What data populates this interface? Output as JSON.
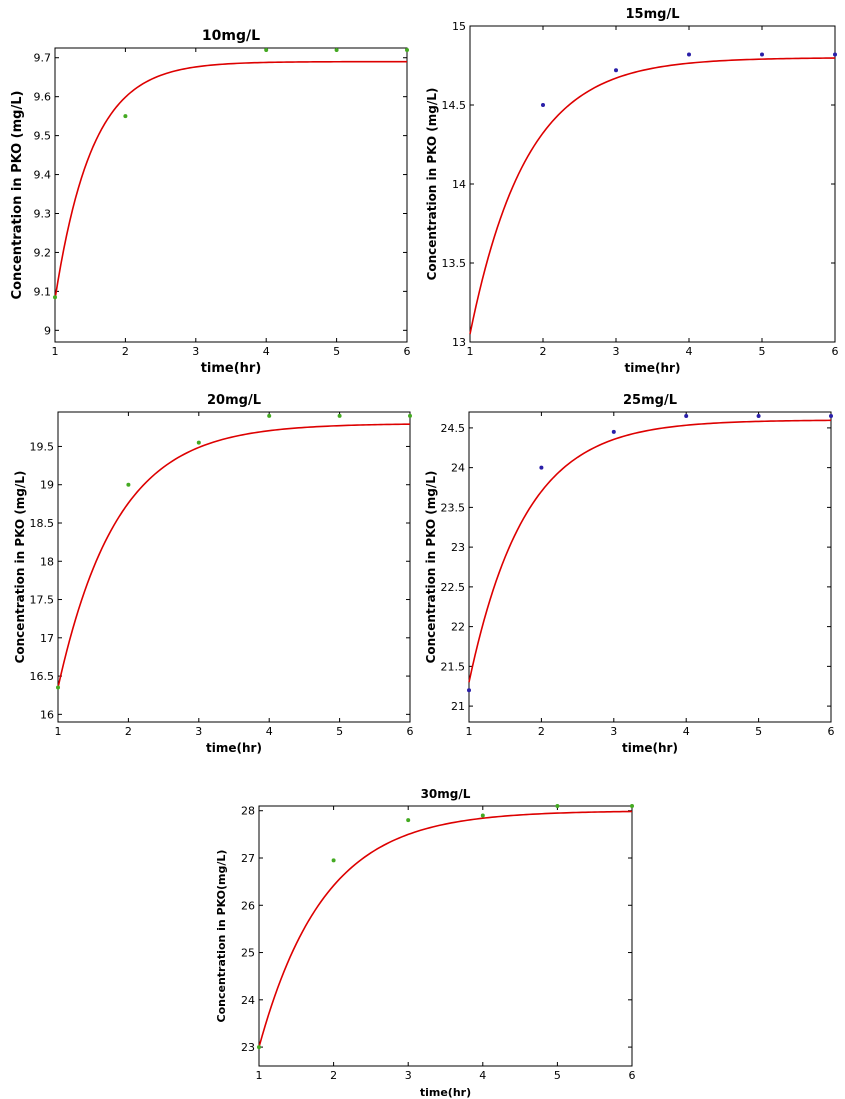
{
  "chart_data": [
    {
      "type": "scatter",
      "title": "10mg/L",
      "xlabel": "time(hr)",
      "ylabel": "Concentration in PKO (mg/L)",
      "xlim": [
        1,
        6
      ],
      "ylim": [
        8.97,
        9.725
      ],
      "xticks": [
        1,
        2,
        3,
        4,
        5,
        6
      ],
      "yticks": [
        9,
        9.1,
        9.2,
        9.3,
        9.4,
        9.5,
        9.6,
        9.7
      ],
      "ytick_labels": [
        "9",
        "9.1",
        "9.2",
        "9.3",
        "9.4",
        "9.5",
        "9.6",
        "9.7"
      ],
      "grid": false,
      "marker_color": "#44aa22",
      "fit_color": "#dd0000",
      "points": {
        "x": [
          1,
          2,
          4,
          5,
          6
        ],
        "y": [
          9.085,
          9.55,
          9.72,
          9.72,
          9.72
        ]
      },
      "fit": {
        "model": "y = ymax - (ymax - y0) * exp(-k (x - 1))",
        "y0": 9.08,
        "ymax": 9.69,
        "k": 1.9
      }
    },
    {
      "type": "scatter",
      "title": "15mg/L",
      "xlabel": "time(hr)",
      "ylabel": "Concentration in PKO (mg/L)",
      "xlim": [
        1,
        6
      ],
      "ylim": [
        13,
        15
      ],
      "xticks": [
        1,
        2,
        3,
        4,
        5,
        6
      ],
      "yticks": [
        13,
        13.5,
        14,
        14.5,
        15
      ],
      "ytick_labels": [
        "13",
        "13.5",
        "14",
        "14.5",
        "15"
      ],
      "grid": false,
      "marker_color": "#2a1fa8",
      "fit_color": "#dd0000",
      "points": {
        "x": [
          2,
          3,
          4,
          5,
          6
        ],
        "y": [
          14.5,
          14.72,
          14.82,
          14.82,
          14.82
        ]
      },
      "fit": {
        "model": "y = ymax - (ymax - y0) * exp(-k (x - 1))",
        "y0": 13.05,
        "ymax": 14.8,
        "k": 1.3
      }
    },
    {
      "type": "scatter",
      "title": "20mg/L",
      "xlabel": "time(hr)",
      "ylabel": "Concentration in PKO (mg/L)",
      "xlim": [
        1,
        6
      ],
      "ylim": [
        15.9,
        19.95
      ],
      "xticks": [
        1,
        2,
        3,
        4,
        5,
        6
      ],
      "yticks": [
        16,
        16.5,
        17,
        17.5,
        18,
        18.5,
        19,
        19.5
      ],
      "ytick_labels": [
        "16",
        "16.5",
        "17",
        "17.5",
        "18",
        "18.5",
        "19",
        "19.5"
      ],
      "grid": false,
      "marker_color": "#44aa22",
      "fit_color": "#dd0000",
      "points": {
        "x": [
          1,
          2,
          3,
          4,
          5,
          6
        ],
        "y": [
          16.35,
          19.0,
          19.55,
          19.9,
          19.9,
          19.9
        ]
      },
      "fit": {
        "model": "y = ymax - (ymax - y0) * exp(-k (x - 1))",
        "y0": 16.35,
        "ymax": 19.8,
        "k": 1.2
      }
    },
    {
      "type": "scatter",
      "title": "25mg/L",
      "xlabel": "time(hr)",
      "ylabel": "Concentration in PKO (mg/L)",
      "xlim": [
        1,
        6
      ],
      "ylim": [
        20.8,
        24.7
      ],
      "xticks": [
        1,
        2,
        3,
        4,
        5,
        6
      ],
      "yticks": [
        21,
        21.5,
        22,
        22.5,
        23,
        23.5,
        24,
        24.5
      ],
      "ytick_labels": [
        "21",
        "21.5",
        "22",
        "22.5",
        "23",
        "23.5",
        "24",
        "24.5"
      ],
      "grid": false,
      "marker_color": "#2a1fa8",
      "fit_color": "#dd0000",
      "points": {
        "x": [
          1,
          2,
          3,
          4,
          5,
          6
        ],
        "y": [
          21.2,
          24.0,
          24.45,
          24.65,
          24.65,
          24.65
        ]
      },
      "fit": {
        "model": "y = ymax - (ymax - y0) * exp(-k (x - 1))",
        "y0": 21.3,
        "ymax": 24.6,
        "k": 1.3
      }
    },
    {
      "type": "scatter",
      "title": "30mg/L",
      "xlabel": "time(hr)",
      "ylabel": "Concentration in PKO(mg/L)",
      "xlim": [
        1,
        6
      ],
      "ylim": [
        22.6,
        28.1
      ],
      "xticks": [
        1,
        2,
        3,
        4,
        5,
        6
      ],
      "yticks": [
        23,
        24,
        25,
        26,
        27,
        28
      ],
      "ytick_labels": [
        "23",
        "24",
        "25",
        "26",
        "27",
        "28"
      ],
      "grid": false,
      "marker_color": "#44aa22",
      "fit_color": "#dd0000",
      "points": {
        "x": [
          1,
          2,
          3,
          4,
          5,
          6
        ],
        "y": [
          23.0,
          26.95,
          27.8,
          27.9,
          28.1,
          28.1
        ]
      },
      "fit": {
        "model": "y = ymax - (ymax - y0) * exp(-k (x - 1))",
        "y0": 23.0,
        "ymax": 28.0,
        "k": 1.15
      }
    }
  ]
}
